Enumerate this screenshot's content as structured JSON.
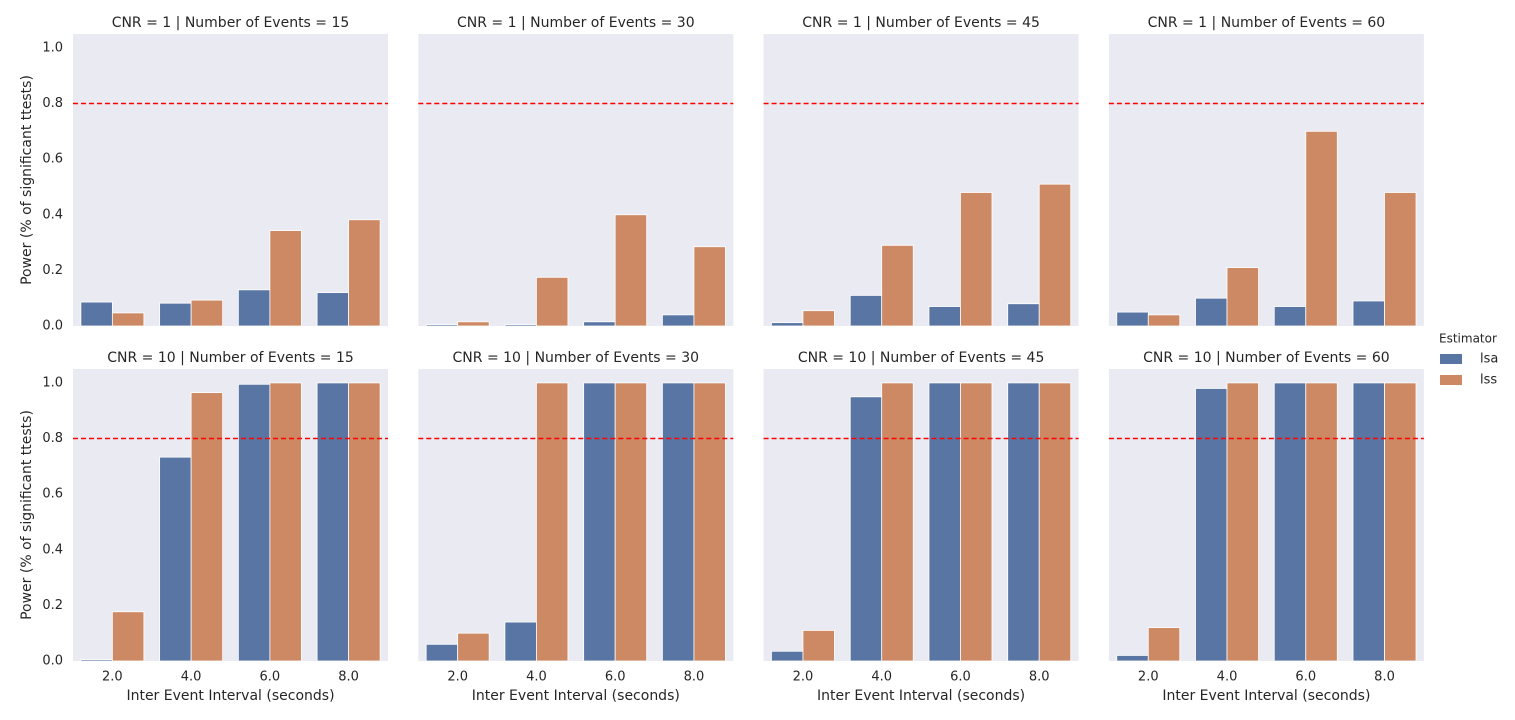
{
  "chart_data": [
    {
      "type": "bar",
      "title": "CNR = 1 | Number of Events = 15",
      "ylabel": "Power (% of significant ttests)",
      "ylim": [
        0,
        1.05
      ],
      "yticks": [
        {
          "value": 0,
          "label": "0.0"
        },
        {
          "value": 0.2,
          "label": "0.2"
        },
        {
          "value": 0.4,
          "label": "0.4"
        },
        {
          "value": 0.6,
          "label": "0.6"
        },
        {
          "value": 0.8,
          "label": "0.8"
        },
        {
          "value": 1,
          "label": "1.0"
        }
      ],
      "reference_line": 0.8,
      "reference_color": "#ff0000",
      "series": [
        {
          "color": "#5875a4",
          "values": [
            0.086,
            0.082,
            0.13,
            0.12
          ]
        },
        {
          "color": "#cc8963",
          "values": [
            0.047,
            0.093,
            0.343,
            0.382
          ]
        }
      ]
    },
    {
      "type": "bar",
      "title": "CNR = 1 | Number of Events = 30",
      "ylim": [
        0,
        1.05
      ],
      "reference_line": 0.8,
      "reference_color": "#ff0000",
      "series": [
        {
          "color": "#5875a4",
          "values": [
            0.005,
            0.005,
            0.015,
            0.04
          ]
        },
        {
          "color": "#cc8963",
          "values": [
            0.015,
            0.175,
            0.4,
            0.285
          ]
        }
      ]
    },
    {
      "type": "bar",
      "title": "CNR = 1 | Number of Events = 45",
      "ylim": [
        0,
        1.05
      ],
      "reference_line": 0.8,
      "reference_color": "#ff0000",
      "series": [
        {
          "color": "#5875a4",
          "values": [
            0.012,
            0.11,
            0.07,
            0.08
          ]
        },
        {
          "color": "#cc8963",
          "values": [
            0.055,
            0.29,
            0.48,
            0.51
          ]
        }
      ]
    },
    {
      "type": "bar",
      "title": "CNR = 1 | Number of Events = 60",
      "ylim": [
        0,
        1.05
      ],
      "reference_line": 0.8,
      "reference_color": "#ff0000",
      "series": [
        {
          "color": "#5875a4",
          "values": [
            0.05,
            0.1,
            0.07,
            0.09
          ]
        },
        {
          "color": "#cc8963",
          "values": [
            0.04,
            0.21,
            0.7,
            0.48
          ]
        }
      ]
    },
    {
      "type": "bar",
      "title": "CNR = 10 | Number of Events = 15",
      "ylabel": "Power (% of significant ttests)",
      "xlabel": "Inter Event Interval (seconds)",
      "categories": [
        "2.0",
        "4.0",
        "6.0",
        "8.0"
      ],
      "ylim": [
        0,
        1.05
      ],
      "yticks": [
        {
          "value": 0,
          "label": "0.0"
        },
        {
          "value": 0.2,
          "label": "0.2"
        },
        {
          "value": 0.4,
          "label": "0.4"
        },
        {
          "value": 0.6,
          "label": "0.6"
        },
        {
          "value": 0.8,
          "label": "0.8"
        },
        {
          "value": 1,
          "label": "1.0"
        }
      ],
      "reference_line": 0.8,
      "reference_color": "#ff0000",
      "series": [
        {
          "color": "#5875a4",
          "values": [
            0.005,
            0.733,
            0.995,
            1.0
          ]
        },
        {
          "color": "#cc8963",
          "values": [
            0.177,
            0.965,
            1.0,
            1.0
          ]
        }
      ]
    },
    {
      "type": "bar",
      "title": "CNR = 10 | Number of Events = 30",
      "xlabel": "Inter Event Interval (seconds)",
      "categories": [
        "2.0",
        "4.0",
        "6.0",
        "8.0"
      ],
      "ylim": [
        0,
        1.05
      ],
      "reference_line": 0.8,
      "reference_color": "#ff0000",
      "series": [
        {
          "color": "#5875a4",
          "values": [
            0.06,
            0.14,
            1.0,
            1.0
          ]
        },
        {
          "color": "#cc8963",
          "values": [
            0.1,
            1.0,
            1.0,
            1.0
          ]
        }
      ]
    },
    {
      "type": "bar",
      "title": "CNR = 10 | Number of Events = 45",
      "xlabel": "Inter Event Interval (seconds)",
      "categories": [
        "2.0",
        "4.0",
        "6.0",
        "8.0"
      ],
      "ylim": [
        0,
        1.05
      ],
      "reference_line": 0.8,
      "reference_color": "#ff0000",
      "series": [
        {
          "color": "#5875a4",
          "values": [
            0.035,
            0.95,
            1.0,
            1.0
          ]
        },
        {
          "color": "#cc8963",
          "values": [
            0.11,
            1.0,
            1.0,
            1.0
          ]
        }
      ]
    },
    {
      "type": "bar",
      "title": "CNR = 10 | Number of Events = 60",
      "xlabel": "Inter Event Interval (seconds)",
      "categories": [
        "2.0",
        "4.0",
        "6.0",
        "8.0"
      ],
      "ylim": [
        0,
        1.05
      ],
      "reference_line": 0.8,
      "reference_color": "#ff0000",
      "series": [
        {
          "color": "#5875a4",
          "values": [
            0.02,
            0.98,
            1.0,
            1.0
          ]
        },
        {
          "color": "#cc8963",
          "values": [
            0.12,
            1.0,
            1.0,
            1.0
          ]
        }
      ]
    }
  ],
  "legend": {
    "title": "Estimator",
    "entries": [
      {
        "name": "lsa",
        "color": "#5875a4"
      },
      {
        "name": "lss",
        "color": "#cc8963"
      }
    ]
  }
}
